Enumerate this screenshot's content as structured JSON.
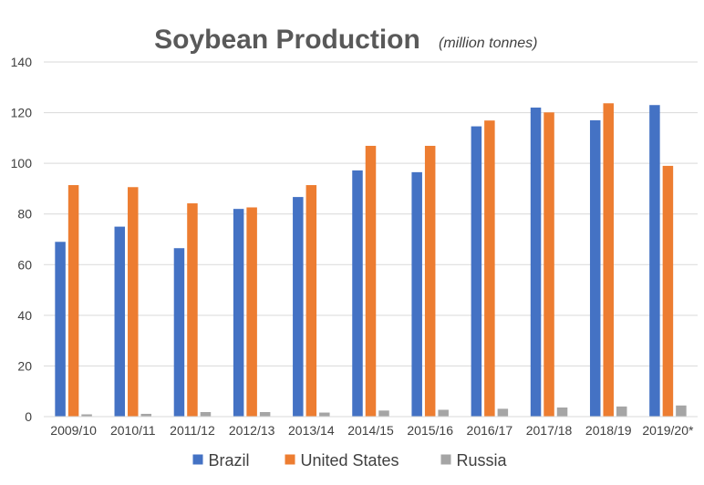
{
  "chart_data": {
    "type": "bar",
    "title": "Soybean Production",
    "subtitle": "(million tonnes)",
    "xlabel": "",
    "ylabel": "",
    "ylim": [
      0,
      140
    ],
    "yticks": [
      0,
      20,
      40,
      60,
      80,
      100,
      120,
      140
    ],
    "grid": true,
    "legend_position": "bottom",
    "categories": [
      "2009/10",
      "2010/11",
      "2011/12",
      "2012/13",
      "2013/14",
      "2014/15",
      "2015/16",
      "2016/17",
      "2017/18",
      "2018/19",
      "2019/20*"
    ],
    "series": [
      {
        "name": "Brazil",
        "color": "#4472c4",
        "values": [
          69,
          75,
          66.5,
          82,
          86.7,
          97.2,
          96.5,
          114.6,
          122,
          117,
          123
        ]
      },
      {
        "name": "United States",
        "color": "#ed7d31",
        "values": [
          91.4,
          90.6,
          84.2,
          82.6,
          91.4,
          106.9,
          106.9,
          116.9,
          120.1,
          123.7,
          99
        ]
      },
      {
        "name": "Russia",
        "color": "#a5a5a5",
        "values": [
          0.9,
          1.1,
          1.8,
          1.8,
          1.6,
          2.4,
          2.7,
          3.1,
          3.6,
          4,
          4.4
        ]
      }
    ]
  }
}
